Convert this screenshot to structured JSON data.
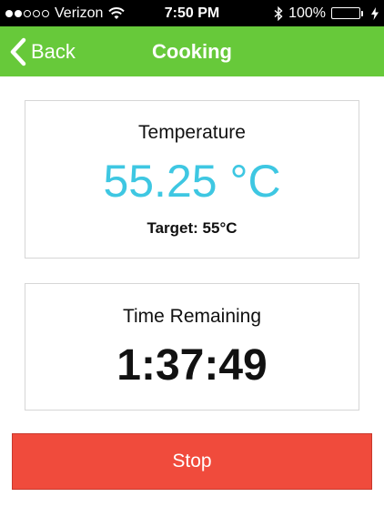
{
  "status_bar": {
    "signal_full": 2,
    "signal_empty": 3,
    "carrier": "Verizon",
    "time": "7:50 PM",
    "battery_percent": "100%",
    "battery_level": 1.0,
    "battery_color": "#4cd964"
  },
  "nav": {
    "back_label": "Back",
    "title": "Cooking",
    "color": "#67c93a"
  },
  "temperature_card": {
    "label": "Temperature",
    "value": "55.25 °C",
    "target": "Target: 55°C",
    "value_color": "#3ec7e2"
  },
  "time_card": {
    "label": "Time Remaining",
    "value": "1:37:49"
  },
  "actions": {
    "stop_label": "Stop",
    "stop_color": "#f04b3c"
  },
  "icons": [
    "wifi-icon",
    "bluetooth-icon",
    "battery-icon",
    "charging-icon",
    "chevron-left-icon"
  ]
}
